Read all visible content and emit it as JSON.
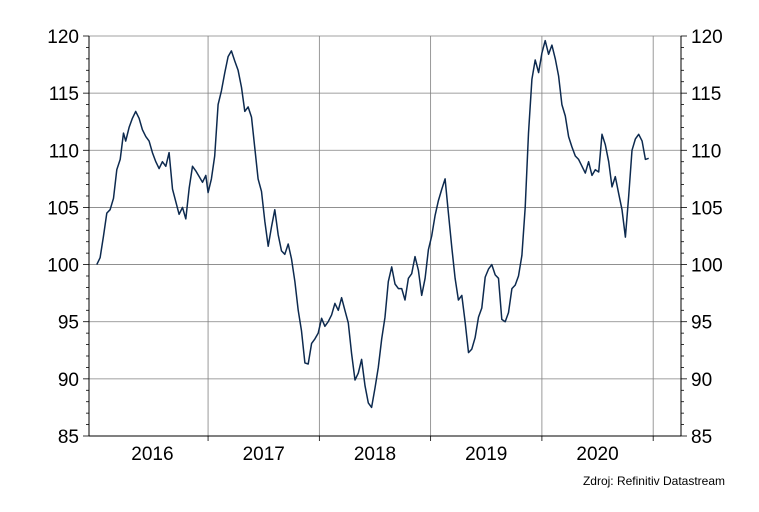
{
  "chart_data": {
    "type": "line",
    "title": "",
    "xlabel": "",
    "ylabel": "",
    "ylim": [
      85,
      120
    ],
    "y_ticks": [
      85,
      90,
      95,
      100,
      105,
      110,
      115,
      120
    ],
    "x_tick_labels": [
      "2016",
      "2017",
      "2018",
      "2019",
      "2020"
    ],
    "grid": true,
    "axes": "left-and-right",
    "line_color": "#0d2a4f",
    "series": [
      {
        "values": [
          [
            2016.0,
            100.0
          ],
          [
            2016.03,
            100.6
          ],
          [
            2016.06,
            102.5
          ],
          [
            2016.09,
            104.5
          ],
          [
            2016.12,
            104.8
          ],
          [
            2016.15,
            105.8
          ],
          [
            2016.18,
            108.3
          ],
          [
            2016.21,
            109.2
          ],
          [
            2016.24,
            111.5
          ],
          [
            2016.26,
            110.8
          ],
          [
            2016.29,
            112.0
          ],
          [
            2016.32,
            112.8
          ],
          [
            2016.35,
            113.4
          ],
          [
            2016.38,
            112.8
          ],
          [
            2016.41,
            111.8
          ],
          [
            2016.44,
            111.2
          ],
          [
            2016.47,
            110.8
          ],
          [
            2016.5,
            109.8
          ],
          [
            2016.53,
            109.0
          ],
          [
            2016.56,
            108.4
          ],
          [
            2016.59,
            109.0
          ],
          [
            2016.62,
            108.6
          ],
          [
            2016.65,
            109.8
          ],
          [
            2016.68,
            106.6
          ],
          [
            2016.71,
            105.5
          ],
          [
            2016.74,
            104.4
          ],
          [
            2016.77,
            105.0
          ],
          [
            2016.8,
            104.0
          ],
          [
            2016.83,
            106.7
          ],
          [
            2016.86,
            108.6
          ],
          [
            2016.89,
            108.2
          ],
          [
            2016.92,
            107.7
          ],
          [
            2016.95,
            107.2
          ],
          [
            2016.98,
            107.8
          ],
          [
            2017.0,
            106.3
          ],
          [
            2017.03,
            107.5
          ],
          [
            2017.06,
            109.5
          ],
          [
            2017.09,
            114.0
          ],
          [
            2017.12,
            115.2
          ],
          [
            2017.15,
            116.8
          ],
          [
            2017.18,
            118.2
          ],
          [
            2017.21,
            118.7
          ],
          [
            2017.24,
            117.8
          ],
          [
            2017.27,
            117.0
          ],
          [
            2017.3,
            115.5
          ],
          [
            2017.33,
            113.4
          ],
          [
            2017.36,
            113.8
          ],
          [
            2017.39,
            112.9
          ],
          [
            2017.42,
            110.2
          ],
          [
            2017.45,
            107.5
          ],
          [
            2017.48,
            106.4
          ],
          [
            2017.51,
            103.8
          ],
          [
            2017.54,
            101.6
          ],
          [
            2017.57,
            103.3
          ],
          [
            2017.6,
            104.8
          ],
          [
            2017.63,
            102.6
          ],
          [
            2017.66,
            101.2
          ],
          [
            2017.69,
            100.9
          ],
          [
            2017.72,
            101.8
          ],
          [
            2017.75,
            100.5
          ],
          [
            2017.78,
            98.5
          ],
          [
            2017.81,
            96.0
          ],
          [
            2017.84,
            94.2
          ],
          [
            2017.87,
            91.4
          ],
          [
            2017.9,
            91.3
          ],
          [
            2017.93,
            93.1
          ],
          [
            2017.96,
            93.5
          ],
          [
            2017.99,
            94.0
          ],
          [
            2018.02,
            95.3
          ],
          [
            2018.05,
            94.6
          ],
          [
            2018.08,
            95.0
          ],
          [
            2018.11,
            95.6
          ],
          [
            2018.14,
            96.6
          ],
          [
            2018.17,
            96.0
          ],
          [
            2018.2,
            97.1
          ],
          [
            2018.23,
            96.0
          ],
          [
            2018.26,
            94.9
          ],
          [
            2018.29,
            92.2
          ],
          [
            2018.32,
            89.9
          ],
          [
            2018.35,
            90.5
          ],
          [
            2018.38,
            91.7
          ],
          [
            2018.41,
            89.4
          ],
          [
            2018.44,
            87.9
          ],
          [
            2018.47,
            87.5
          ],
          [
            2018.5,
            89.2
          ],
          [
            2018.53,
            91.0
          ],
          [
            2018.56,
            93.5
          ],
          [
            2018.59,
            95.4
          ],
          [
            2018.62,
            98.5
          ],
          [
            2018.65,
            99.8
          ],
          [
            2018.68,
            98.3
          ],
          [
            2018.71,
            97.9
          ],
          [
            2018.74,
            97.9
          ],
          [
            2018.77,
            96.9
          ],
          [
            2018.8,
            98.8
          ],
          [
            2018.83,
            99.2
          ],
          [
            2018.86,
            100.7
          ],
          [
            2018.89,
            99.5
          ],
          [
            2018.92,
            97.3
          ],
          [
            2018.95,
            98.8
          ],
          [
            2018.98,
            101.3
          ],
          [
            2019.01,
            102.5
          ],
          [
            2019.04,
            104.3
          ],
          [
            2019.07,
            105.6
          ],
          [
            2019.1,
            106.6
          ],
          [
            2019.13,
            107.5
          ],
          [
            2019.16,
            104.5
          ],
          [
            2019.19,
            101.5
          ],
          [
            2019.22,
            98.8
          ],
          [
            2019.25,
            96.9
          ],
          [
            2019.28,
            97.3
          ],
          [
            2019.31,
            95.0
          ],
          [
            2019.34,
            92.3
          ],
          [
            2019.37,
            92.6
          ],
          [
            2019.4,
            93.6
          ],
          [
            2019.43,
            95.4
          ],
          [
            2019.46,
            96.2
          ],
          [
            2019.49,
            98.9
          ],
          [
            2019.52,
            99.6
          ],
          [
            2019.55,
            100.0
          ],
          [
            2019.58,
            99.1
          ],
          [
            2019.61,
            98.8
          ],
          [
            2019.64,
            95.2
          ],
          [
            2019.67,
            95.0
          ],
          [
            2019.7,
            95.8
          ],
          [
            2019.73,
            97.9
          ],
          [
            2019.76,
            98.2
          ],
          [
            2019.79,
            99.0
          ],
          [
            2019.82,
            100.8
          ],
          [
            2019.85,
            105.0
          ],
          [
            2019.88,
            111.5
          ],
          [
            2019.91,
            116.2
          ],
          [
            2019.94,
            117.9
          ],
          [
            2019.97,
            116.8
          ],
          [
            2020.0,
            118.5
          ],
          [
            2020.03,
            119.6
          ],
          [
            2020.06,
            118.4
          ],
          [
            2020.09,
            119.2
          ],
          [
            2020.12,
            118.0
          ],
          [
            2020.15,
            116.5
          ],
          [
            2020.18,
            114.0
          ],
          [
            2020.21,
            113.0
          ],
          [
            2020.24,
            111.2
          ],
          [
            2020.27,
            110.3
          ],
          [
            2020.3,
            109.5
          ],
          [
            2020.33,
            109.2
          ],
          [
            2020.36,
            108.6
          ],
          [
            2020.39,
            108.0
          ],
          [
            2020.42,
            109.0
          ],
          [
            2020.45,
            107.8
          ],
          [
            2020.48,
            108.3
          ],
          [
            2020.51,
            108.1
          ],
          [
            2020.54,
            111.4
          ],
          [
            2020.57,
            110.5
          ],
          [
            2020.6,
            109.0
          ],
          [
            2020.63,
            106.8
          ],
          [
            2020.66,
            107.7
          ],
          [
            2020.69,
            106.2
          ],
          [
            2020.72,
            104.8
          ],
          [
            2020.75,
            102.4
          ],
          [
            2020.78,
            106.0
          ],
          [
            2020.81,
            110.0
          ],
          [
            2020.84,
            111.0
          ],
          [
            2020.87,
            111.4
          ],
          [
            2020.9,
            110.8
          ],
          [
            2020.93,
            109.2
          ],
          [
            2020.96,
            109.3
          ]
        ]
      }
    ]
  },
  "source": "Zdroj: Refinitiv Datastream"
}
